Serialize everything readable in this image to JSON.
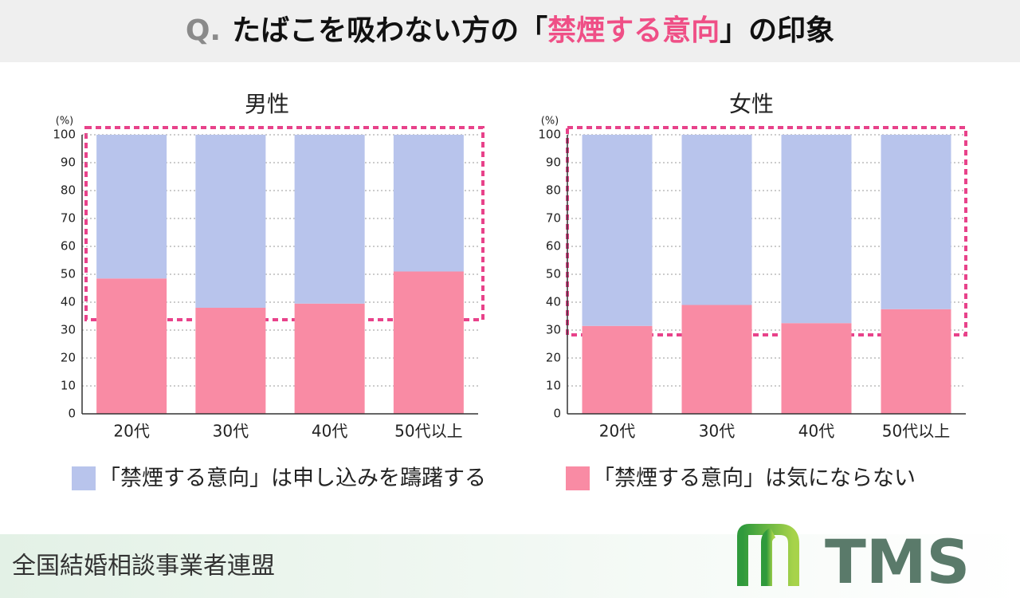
{
  "title": {
    "prefix": "Q.",
    "parts": [
      "たばこを吸わない方の「",
      "禁煙する意向",
      "」の印象"
    ]
  },
  "chart_data": [
    {
      "type": "bar",
      "stacked": true,
      "title": "男性",
      "y_label": "(%)",
      "categories": [
        "20代",
        "30代",
        "40代",
        "50代以上"
      ],
      "series": [
        {
          "name": "「禁煙する意向」は気にならない",
          "color": "#f98ba4",
          "values": [
            48.5,
            38,
            39.5,
            51
          ]
        },
        {
          "name": "「禁煙する意向」は申し込みを躊躇する",
          "color": "#b8c4ec",
          "values": [
            51.5,
            62,
            60.5,
            49
          ]
        }
      ],
      "ylim": [
        0,
        100
      ],
      "yticks": [
        0,
        10,
        20,
        30,
        40,
        50,
        60,
        70,
        80,
        90,
        100
      ],
      "grid": true
    },
    {
      "type": "bar",
      "stacked": true,
      "title": "女性",
      "y_label": "(%)",
      "categories": [
        "20代",
        "30代",
        "40代",
        "50代以上"
      ],
      "series": [
        {
          "color": "#f98ba4",
          "values": [
            31.5,
            39,
            32.5,
            37.5
          ]
        },
        {
          "color": "#b8c4ec",
          "values": [
            68.5,
            61,
            67.5,
            62.5
          ]
        }
      ],
      "ylim": [
        0,
        100
      ],
      "yticks": [
        0,
        10,
        20,
        30,
        40,
        50,
        60,
        70,
        80,
        90,
        100
      ],
      "grid": true
    }
  ],
  "footer": {
    "organization": "全国結婚相談事業者連盟",
    "logo": "TMS"
  }
}
